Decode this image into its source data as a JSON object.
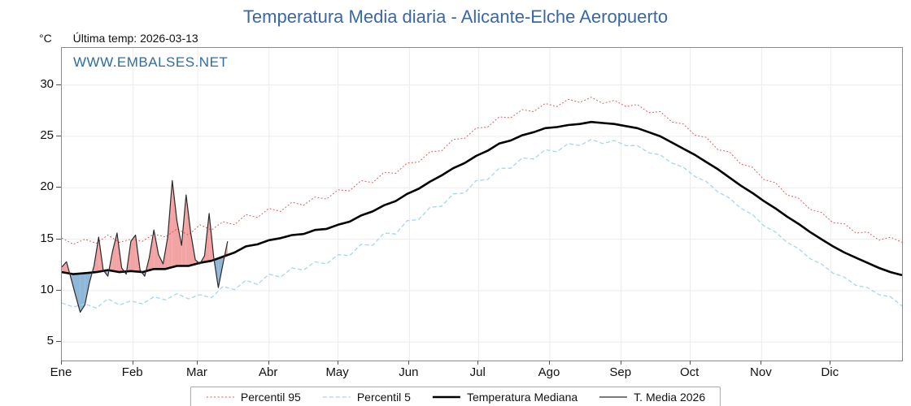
{
  "title": "Temperatura Media diaria - Alicante-Elche Aeropuerto",
  "header": {
    "degrees_label": "°C",
    "last_temp": "Última temp: 2026-03-13"
  },
  "watermark": "WWW.EMBALSES.NET",
  "chart_data": {
    "type": "line",
    "title": "Temperatura Media diaria - Alicante-Elche Aeropuerto",
    "xlabel": "",
    "ylabel": "°C",
    "ylim": [
      3.2,
      33.6
    ],
    "yticks": [
      5,
      10,
      15,
      20,
      25,
      30
    ],
    "grid": true,
    "legend_position": "bottom",
    "months": [
      "Ene",
      "Feb",
      "Mar",
      "Abr",
      "May",
      "Jun",
      "Jul",
      "Ago",
      "Sep",
      "Oct",
      "Nov",
      "Dic"
    ],
    "month_start_days": [
      0,
      31,
      59,
      90,
      120,
      151,
      181,
      212,
      243,
      273,
      304,
      334
    ],
    "x_days": [
      0,
      5,
      10,
      15,
      20,
      25,
      30,
      35,
      40,
      45,
      50,
      55,
      60,
      65,
      70,
      75,
      80,
      85,
      90,
      95,
      100,
      105,
      110,
      115,
      120,
      125,
      130,
      135,
      140,
      145,
      150,
      155,
      160,
      165,
      170,
      175,
      180,
      185,
      190,
      195,
      200,
      205,
      210,
      215,
      220,
      225,
      230,
      235,
      240,
      245,
      250,
      255,
      260,
      265,
      270,
      275,
      280,
      285,
      290,
      295,
      300,
      305,
      310,
      315,
      320,
      325,
      330,
      335,
      340,
      345,
      350,
      355,
      360,
      365
    ],
    "series": [
      {
        "name": "Percentil 95",
        "color": "#e05252",
        "style": "dotted",
        "width": 1,
        "values": [
          15.1,
          14.5,
          15.0,
          14.6,
          15.4,
          14.7,
          15.0,
          14.8,
          15.5,
          15.2,
          16.0,
          15.4,
          16.4,
          15.9,
          16.7,
          16.4,
          17.4,
          17.1,
          18.0,
          17.7,
          18.6,
          18.3,
          19.1,
          18.9,
          19.8,
          19.7,
          20.7,
          20.5,
          21.5,
          21.4,
          22.4,
          22.5,
          23.5,
          23.6,
          24.7,
          24.8,
          25.8,
          25.9,
          26.9,
          26.8,
          27.6,
          27.4,
          28.2,
          27.9,
          28.6,
          28.3,
          28.8,
          28.2,
          28.5,
          27.9,
          28.1,
          27.3,
          27.4,
          26.4,
          26.2,
          25.1,
          24.9,
          23.7,
          23.5,
          22.3,
          22.0,
          20.8,
          20.5,
          19.3,
          19.0,
          17.9,
          17.6,
          16.6,
          16.5,
          15.6,
          15.7,
          14.9,
          15.2,
          14.7
        ]
      },
      {
        "name": "Percentil 5",
        "color": "#a6d7e8",
        "style": "dashed",
        "width": 1.3,
        "values": [
          8.8,
          8.4,
          8.7,
          8.3,
          9.2,
          8.6,
          9.0,
          8.7,
          9.4,
          9.1,
          9.7,
          9.2,
          9.6,
          9.3,
          10.4,
          10.1,
          11.0,
          10.6,
          11.6,
          11.3,
          12.2,
          12.0,
          12.8,
          12.6,
          13.5,
          13.4,
          14.5,
          14.4,
          15.6,
          15.5,
          16.8,
          16.9,
          18.1,
          18.2,
          19.4,
          19.5,
          20.7,
          20.8,
          21.9,
          21.9,
          22.9,
          22.8,
          23.7,
          23.5,
          24.3,
          24.1,
          24.7,
          24.3,
          24.6,
          24.1,
          24.1,
          23.4,
          23.2,
          22.4,
          22.0,
          21.1,
          20.6,
          19.6,
          19.0,
          18.0,
          17.4,
          16.3,
          15.7,
          14.7,
          14.1,
          13.1,
          12.6,
          11.7,
          11.3,
          10.5,
          10.3,
          9.6,
          9.4,
          8.5
        ]
      },
      {
        "name": "Temperatura Mediana",
        "color": "#000000",
        "style": "solid",
        "width": 2.6,
        "values": [
          11.8,
          11.6,
          11.7,
          11.8,
          12.0,
          11.8,
          11.9,
          11.8,
          12.1,
          12.1,
          12.4,
          12.4,
          12.7,
          12.9,
          13.3,
          13.7,
          14.3,
          14.5,
          14.9,
          15.1,
          15.4,
          15.5,
          15.9,
          16.0,
          16.4,
          16.7,
          17.3,
          17.7,
          18.3,
          18.7,
          19.4,
          19.9,
          20.6,
          21.2,
          21.9,
          22.4,
          23.1,
          23.6,
          24.3,
          24.6,
          25.1,
          25.4,
          25.8,
          25.9,
          26.1,
          26.2,
          26.4,
          26.3,
          26.2,
          26.0,
          25.8,
          25.4,
          25.0,
          24.4,
          23.8,
          23.2,
          22.5,
          21.8,
          21.0,
          20.2,
          19.5,
          18.7,
          18.0,
          17.2,
          16.5,
          15.7,
          15.0,
          14.3,
          13.7,
          13.2,
          12.7,
          12.2,
          11.8,
          11.5
        ]
      },
      {
        "name": "T. Media 2026",
        "color": "#2a2a2a",
        "style": "solid",
        "width": 1.2,
        "days": [
          0,
          2,
          4,
          6,
          8,
          10,
          12,
          14,
          16,
          18,
          20,
          22,
          24,
          26,
          28,
          30,
          32,
          34,
          36,
          38,
          40,
          42,
          44,
          46,
          48,
          50,
          52,
          54,
          56,
          58,
          60,
          62,
          64,
          66,
          68,
          70,
          72
        ],
        "values": [
          12.3,
          12.8,
          11.2,
          9.5,
          7.9,
          8.6,
          10.8,
          12.4,
          15.2,
          12.0,
          11.4,
          13.8,
          15.6,
          12.2,
          11.6,
          14.8,
          15.4,
          12.0,
          11.4,
          13.2,
          15.9,
          13.5,
          12.6,
          15.2,
          20.7,
          16.8,
          14.4,
          19.3,
          15.6,
          13.0,
          12.6,
          13.4,
          17.5,
          13.2,
          10.3,
          12.6,
          14.8
        ]
      }
    ],
    "fill_colors": {
      "above_median": "#f2a3a3",
      "below_median": "#8fb8d8"
    }
  }
}
